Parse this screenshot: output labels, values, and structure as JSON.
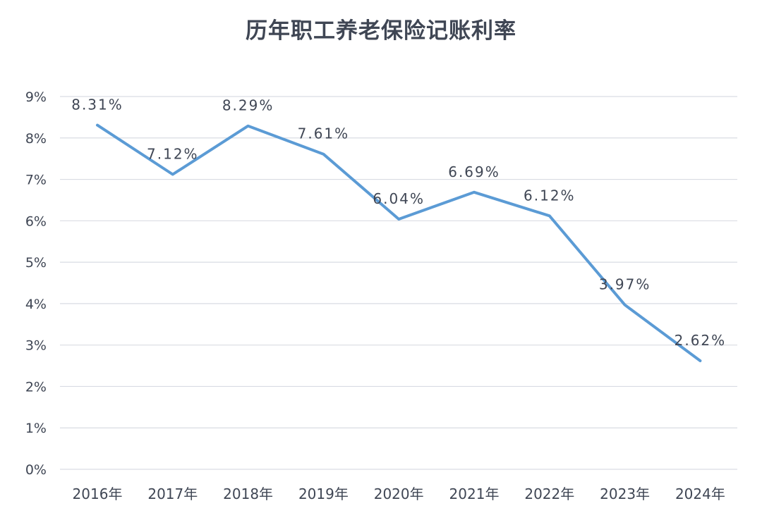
{
  "chart_data": {
    "type": "line",
    "title": "历年职工养老保险记账利率",
    "categories": [
      "2016年",
      "2017年",
      "2018年",
      "2019年",
      "2020年",
      "2021年",
      "2022年",
      "2023年",
      "2024年"
    ],
    "series": [
      {
        "values": [
          8.31,
          7.12,
          8.29,
          7.61,
          6.04,
          6.69,
          6.12,
          3.97,
          2.62
        ],
        "data_labels": [
          "8.31%",
          "7.12%",
          "8.29%",
          "7.61%",
          "6.04%",
          "6.69%",
          "6.12%",
          "3.97%",
          "2.62%"
        ],
        "color": "#5b9bd5"
      }
    ],
    "y_ticks": [
      "0%",
      "1%",
      "2%",
      "3%",
      "4%",
      "5%",
      "6%",
      "7%",
      "8%",
      "9%"
    ],
    "ylim": [
      0,
      9
    ],
    "grid": true,
    "legend": "none"
  },
  "colors": {
    "line": "#5b9bd5",
    "grid": "#d9dce3",
    "axis_text": "#3f4654",
    "title": "#3f4654"
  }
}
